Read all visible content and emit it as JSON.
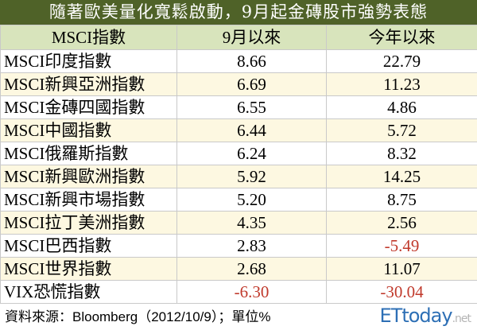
{
  "title": "隨著歐美量化寬鬆啟動，9月起金磚股市強勢表態",
  "headers": [
    "MSCI指數",
    "9月以來",
    "今年以來"
  ],
  "rows": [
    {
      "name": "MSCI印度指數",
      "since_sep": "8.66",
      "ytd": "22.79"
    },
    {
      "name": "MSCI新興亞洲指數",
      "since_sep": "6.69",
      "ytd": "11.23"
    },
    {
      "name": "MSCI金磚四國指數",
      "since_sep": "6.55",
      "ytd": "4.86"
    },
    {
      "name": "MSCI中國指數",
      "since_sep": "6.44",
      "ytd": "5.72"
    },
    {
      "name": "MSCI俄羅斯指數",
      "since_sep": "6.24",
      "ytd": "8.32"
    },
    {
      "name": "MSCI新興歐洲指數",
      "since_sep": "5.92",
      "ytd": "14.25"
    },
    {
      "name": "MSCI新興市場指數",
      "since_sep": "5.20",
      "ytd": "8.75"
    },
    {
      "name": "MSCI拉丁美洲指數",
      "since_sep": "4.35",
      "ytd": "2.56"
    },
    {
      "name": "MSCI巴西指數",
      "since_sep": "2.83",
      "ytd": "-5.49"
    },
    {
      "name": "MSCI世界指數",
      "since_sep": "2.68",
      "ytd": "11.07"
    },
    {
      "name": "VIX恐慌指數",
      "since_sep": "-6.30",
      "ytd": "-30.04"
    }
  ],
  "footer": "資料來源：Bloomberg（2012/10/9）；單位%",
  "logo": {
    "main": "ETtoday",
    "suffix": ".net"
  },
  "colors": {
    "title_bg": "#4f6228",
    "header_bg": "#d8e4bc",
    "alt_row": "#fdf8e1",
    "negative": "#c0392b"
  }
}
